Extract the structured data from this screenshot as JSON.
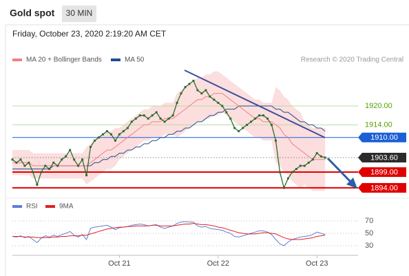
{
  "chart_data": {
    "type": "line",
    "title": "Gold spot",
    "timeframe": "30 MIN",
    "date": "Friday, October 23, 2020 2:19:20 AM CET",
    "credit": "Research © 2020 Trading Central",
    "x": [
      0,
      1,
      2,
      3,
      4,
      5,
      6,
      7,
      8,
      9,
      10,
      11,
      12,
      13,
      14,
      15,
      16,
      17,
      18,
      19,
      20,
      21,
      22,
      23,
      24,
      25,
      26,
      27,
      28,
      29,
      30,
      31,
      32,
      33,
      34,
      35,
      36,
      37,
      38,
      39,
      40,
      41,
      42,
      43,
      44,
      45,
      46,
      47,
      48,
      49,
      50,
      51,
      52,
      53,
      54,
      55,
      56,
      57,
      58,
      59,
      60,
      61,
      62,
      63,
      64,
      65,
      66,
      67,
      68,
      69,
      70,
      71,
      72,
      73,
      74,
      75,
      76
    ],
    "xlim": [
      0,
      84
    ],
    "xticks": [
      {
        "value": 26,
        "label": "Oct 21"
      },
      {
        "value": 50,
        "label": "Oct 22"
      },
      {
        "value": 74,
        "label": "Oct 23"
      }
    ],
    "ylim": [
      1891.8,
      1931.8
    ],
    "price": {
      "color": "#2e6b2e",
      "values": [
        1903,
        1902,
        1903,
        1901,
        1902,
        1899,
        1895,
        1899,
        1901,
        1900,
        1902,
        1901,
        1903,
        1904,
        1906,
        1903,
        1901,
        1903,
        1898,
        1907,
        1909,
        1910,
        1911,
        1912,
        1911,
        1909,
        1911,
        1912,
        1913,
        1915,
        1916,
        1917,
        1917,
        1916,
        1917,
        1918,
        1916,
        1915,
        1916,
        1917,
        1921,
        1924,
        1926,
        1927,
        1928,
        1925,
        1924,
        1925,
        1923,
        1922,
        1921,
        1920,
        1918,
        1916,
        1913,
        1912,
        1913,
        1914,
        1915,
        1916,
        1917,
        1917,
        1916,
        1914,
        1909,
        1899,
        1894,
        1897,
        1899,
        1900,
        1901,
        1901,
        1902,
        1903,
        1905,
        1904,
        1903.6
      ]
    },
    "ma20": {
      "name": "MA 20 + Bollinger Bands",
      "color": "#f08080",
      "band_color": "#fbd3d3",
      "values": [
        1902,
        1902,
        1902,
        1902,
        1902,
        1901,
        1901,
        1901,
        1901,
        1901,
        1901,
        1901,
        1901,
        1901,
        1901,
        1901,
        1901,
        1901,
        1901,
        1902,
        1903,
        1904,
        1905,
        1906,
        1906,
        1907,
        1908,
        1909,
        1910,
        1911,
        1912,
        1913,
        1914,
        1914,
        1915,
        1915,
        1915,
        1916,
        1916,
        1916,
        1917,
        1918,
        1919,
        1920,
        1921,
        1922,
        1922,
        1923,
        1923,
        1924,
        1924,
        1924,
        1923,
        1922,
        1921,
        1920,
        1919,
        1918,
        1917,
        1916,
        1916,
        1915,
        1915,
        1915,
        1914,
        1913,
        1911,
        1910,
        1908,
        1907,
        1906,
        1905,
        1904,
        1903,
        1903,
        1903,
        1903
      ],
      "upper": [
        1906,
        1906,
        1906,
        1906,
        1906,
        1905,
        1905,
        1905,
        1905,
        1905,
        1905,
        1905,
        1905,
        1905,
        1905,
        1905,
        1905,
        1905,
        1907,
        1908,
        1909,
        1910,
        1911,
        1912,
        1912,
        1913,
        1913,
        1914,
        1915,
        1916,
        1917,
        1918,
        1919,
        1919,
        1920,
        1920,
        1920,
        1921,
        1921,
        1921,
        1924,
        1925,
        1926,
        1927,
        1928,
        1929,
        1929,
        1930,
        1930,
        1931,
        1931,
        1930,
        1929,
        1928,
        1927,
        1926,
        1925,
        1924,
        1923,
        1922,
        1922,
        1921,
        1921,
        1921,
        1926,
        1925,
        1923,
        1922,
        1920,
        1919,
        1918,
        1915,
        1914,
        1913,
        1913,
        1913,
        1913
      ],
      "lower": [
        1898,
        1898,
        1898,
        1898,
        1898,
        1897,
        1897,
        1897,
        1897,
        1897,
        1897,
        1897,
        1897,
        1897,
        1897,
        1897,
        1897,
        1897,
        1895,
        1896,
        1897,
        1898,
        1899,
        1900,
        1900,
        1901,
        1903,
        1904,
        1905,
        1906,
        1907,
        1908,
        1909,
        1909,
        1910,
        1910,
        1910,
        1911,
        1911,
        1911,
        1910,
        1911,
        1912,
        1913,
        1914,
        1915,
        1915,
        1916,
        1916,
        1917,
        1917,
        1918,
        1917,
        1916,
        1915,
        1914,
        1913,
        1912,
        1911,
        1910,
        1910,
        1909,
        1909,
        1909,
        1902,
        1901,
        1899,
        1898,
        1896,
        1895,
        1894,
        1895,
        1894,
        1893,
        1893,
        1893,
        1893
      ]
    },
    "ma50": {
      "name": "MA 50",
      "color": "#1f4e8c",
      "values": [
        1900,
        1900,
        1900,
        1900,
        1900,
        1900,
        1900,
        1900,
        1900,
        1900,
        1901,
        1901,
        1901,
        1901,
        1901,
        1901,
        1901,
        1901,
        1901,
        1901,
        1902,
        1902,
        1903,
        1903,
        1904,
        1904,
        1905,
        1905,
        1906,
        1906,
        1907,
        1907,
        1908,
        1908,
        1909,
        1909,
        1910,
        1910,
        1911,
        1911,
        1912,
        1912,
        1913,
        1913,
        1914,
        1915,
        1915,
        1916,
        1917,
        1917,
        1918,
        1918,
        1919,
        1919,
        1919,
        1920,
        1920,
        1920,
        1920,
        1920,
        1920,
        1920,
        1920,
        1920,
        1919,
        1919,
        1918,
        1918,
        1917,
        1916,
        1915,
        1915,
        1914,
        1914,
        1913,
        1913,
        1912
      ]
    },
    "levels": [
      {
        "value": 1920,
        "label": "1920.00",
        "color": "#56a000",
        "line_color": "#b9dca0",
        "style": "text"
      },
      {
        "value": 1914,
        "label": "1914.00",
        "color": "#56a000",
        "line_color": "#b9dca0",
        "style": "text"
      },
      {
        "value": 1910,
        "label": "1910.00",
        "color": "#1a5fd6",
        "line_color": "#1a5fd6",
        "style": "box"
      },
      {
        "value": 1903.6,
        "label": "1903.60",
        "color": "#2b2b2b",
        "line_color": "#888888",
        "style": "dotted"
      },
      {
        "value": 1899,
        "label": "1899.00",
        "color": "#e00000",
        "line_color": "#e00000",
        "style": "thick"
      },
      {
        "value": 1894,
        "label": "1894.00",
        "color": "#e00000",
        "line_color": "#e00000",
        "style": "thick"
      }
    ],
    "rsi_panel": {
      "ylim": [
        15.5,
        80
      ],
      "yticks": [
        30,
        50,
        70
      ],
      "series": [
        {
          "name": "RSI",
          "color": "#5b7fd6",
          "values": [
            45,
            44,
            46,
            43,
            45,
            40,
            35,
            42,
            46,
            44,
            47,
            45,
            48,
            50,
            53,
            47,
            44,
            48,
            40,
            58,
            60,
            61,
            62,
            63,
            60,
            56,
            59,
            60,
            61,
            63,
            64,
            65,
            64,
            62,
            63,
            64,
            60,
            58,
            60,
            62,
            66,
            68,
            69,
            68,
            68,
            62,
            60,
            61,
            58,
            57,
            56,
            55,
            52,
            50,
            45,
            44,
            46,
            48,
            50,
            52,
            54,
            54,
            52,
            48,
            40,
            33,
            30,
            36,
            40,
            42,
            44,
            45,
            46,
            48,
            52,
            50,
            48
          ]
        },
        {
          "name": "9MA",
          "color": "#e02020",
          "values": [
            45,
            45,
            45,
            44,
            44,
            44,
            43,
            43,
            43,
            43,
            44,
            44,
            45,
            45,
            46,
            46,
            46,
            47,
            47,
            49,
            51,
            53,
            55,
            57,
            58,
            59,
            60,
            60,
            61,
            61,
            62,
            62,
            62,
            62,
            63,
            63,
            62,
            62,
            62,
            62,
            63,
            64,
            65,
            65,
            66,
            65,
            64,
            64,
            63,
            62,
            60,
            59,
            57,
            55,
            53,
            51,
            50,
            49,
            49,
            49,
            50,
            51,
            51,
            50,
            49,
            46,
            43,
            41,
            40,
            40,
            40,
            41,
            42,
            43,
            45,
            46,
            47
          ]
        }
      ]
    }
  }
}
